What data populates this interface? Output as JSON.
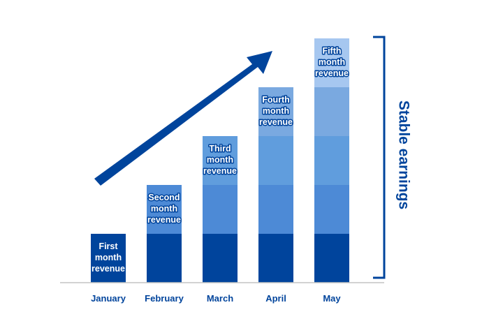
{
  "chart_data": {
    "type": "bar",
    "stacked": true,
    "categories": [
      "January",
      "February",
      "March",
      "April",
      "May"
    ],
    "series": [
      {
        "label": "First month revenue",
        "values": [
          1,
          1,
          1,
          1,
          1
        ],
        "color": "#00449c"
      },
      {
        "label": "Second month revenue",
        "values": [
          0,
          1,
          1,
          1,
          1
        ],
        "color": "#4d8ad6"
      },
      {
        "label": "Third month revenue",
        "values": [
          0,
          0,
          1,
          1,
          1
        ],
        "color": "#609ddd"
      },
      {
        "label": "Fourth month revenue",
        "values": [
          0,
          0,
          0,
          1,
          1
        ],
        "color": "#7aa9e0"
      },
      {
        "label": "Fifth month revenue",
        "values": [
          0,
          0,
          0,
          0,
          1
        ],
        "color": "#a6c7f0"
      }
    ],
    "segment_labels": [
      [
        "First",
        "month",
        "revenue"
      ],
      [
        "Second",
        "month",
        "revenue"
      ],
      [
        "Third",
        "month",
        "revenue"
      ],
      [
        "Fourth",
        "month",
        "revenue"
      ],
      [
        "Fifth",
        "month",
        "revenue"
      ]
    ],
    "ylim": [
      0,
      5
    ],
    "grid": false,
    "annotations": {
      "bracket_label": "Stable earnings",
      "trend_arrow": "up"
    },
    "colors": {
      "label_text": "#00449c",
      "axis": "#c4c4c4",
      "arrow": "#00449c",
      "label_outline": "#00449c"
    }
  }
}
